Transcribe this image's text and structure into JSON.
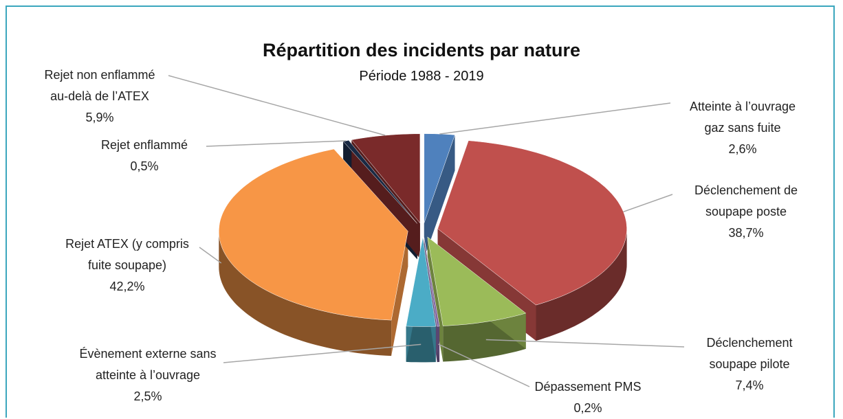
{
  "chart_data": {
    "type": "pie3d",
    "title": "Répartition des incidents par nature",
    "subtitle": "Période 1988 - 2019",
    "categories": [
      "Atteinte à l’ouvrage gaz sans fuite",
      "Déclenchement de soupape poste",
      "Déclenchement soupape pilote",
      "Dépassement PMS",
      "Évènement externe sans atteinte à l’ouvrage",
      "Rejet ATEX (y compris fuite soupape)",
      "Rejet enflammé",
      "Rejet non enflammé au-delà de l’ATEX"
    ],
    "values": [
      2.6,
      38.7,
      7.4,
      0.2,
      2.5,
      42.2,
      0.5,
      5.9
    ],
    "value_labels": [
      "2,6%",
      "38,7%",
      "7,4%",
      "0,2%",
      "2,5%",
      "42,2%",
      "0,5%",
      "5,9%"
    ],
    "colors": [
      "#4f81bd",
      "#c0504d",
      "#9bbb59",
      "#8064a2",
      "#4bacc6",
      "#f79646",
      "#1a2a44",
      "#7a2a2a"
    ]
  }
}
